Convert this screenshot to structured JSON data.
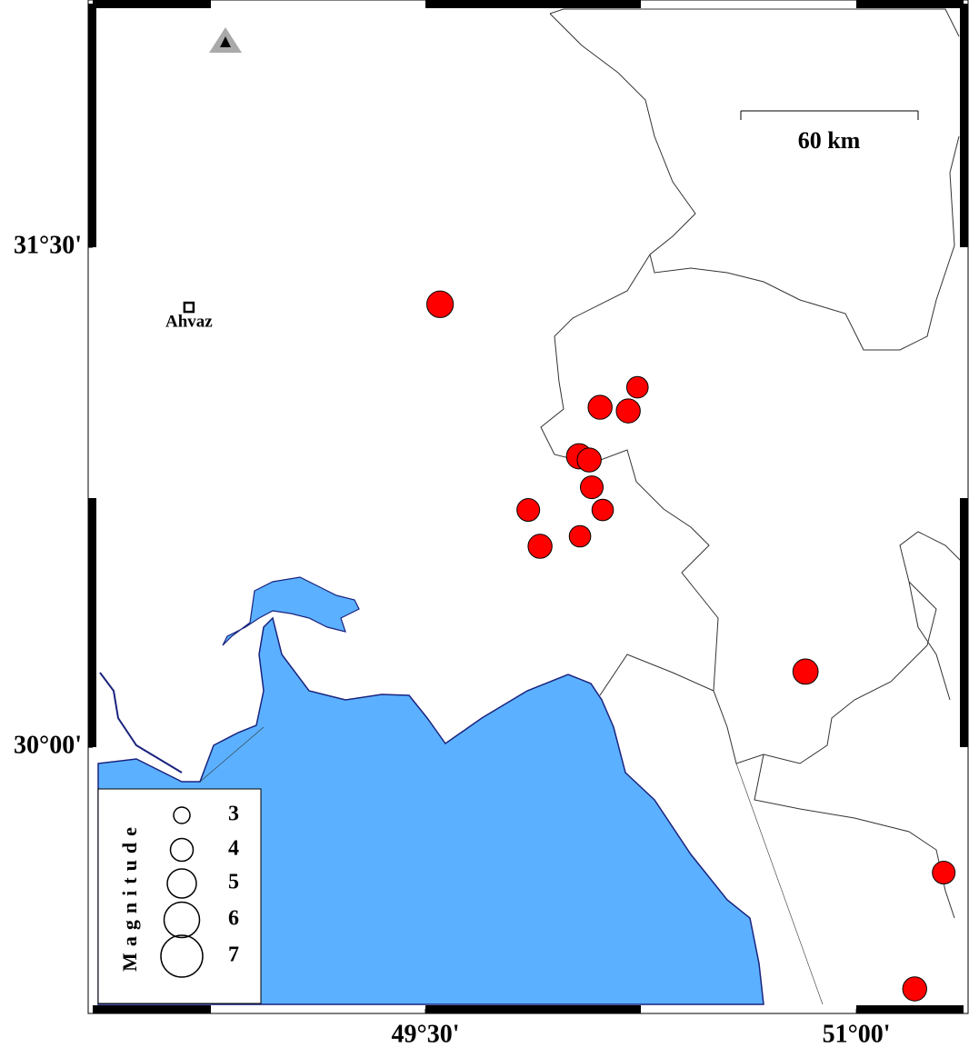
{
  "map": {
    "xlim": [
      48.342,
      51.373
    ],
    "ylim": [
      29.215,
      32.231
    ],
    "xticks": [
      {
        "value": 49.5,
        "label": "49°30'"
      },
      {
        "value": 51,
        "label": "51°00'"
      }
    ],
    "yticks": [
      {
        "value": 30,
        "label": "30°00'"
      },
      {
        "value": 31.5,
        "label": "31°30'"
      }
    ],
    "city": {
      "name": "Ahvaz",
      "lon": 48.677,
      "lat": 31.32
    },
    "scale_bar": "60 km",
    "events": {
      "color": "#ff0000",
      "lon": [
        49.551,
        50.238,
        50.108,
        50.206,
        50.035,
        50.07,
        50.079,
        49.858,
        50.117,
        49.899,
        50.038,
        50.823,
        51.304,
        51.203
      ],
      "lat": [
        31.329,
        31.08,
        31.02,
        31.009,
        30.873,
        30.862,
        30.78,
        30.712,
        30.712,
        30.603,
        30.633,
        30.227,
        29.624,
        29.275
      ],
      "magnitude": [
        4.6,
        3.8,
        4.2,
        4.2,
        4.4,
        4.2,
        4.0,
        4.0,
        3.8,
        4.2,
        3.8,
        4.4,
        4.0,
        4.2
      ]
    },
    "legend": {
      "title": "Magnitude",
      "magnitudes": [
        3,
        4,
        5,
        6,
        7
      ]
    }
  }
}
